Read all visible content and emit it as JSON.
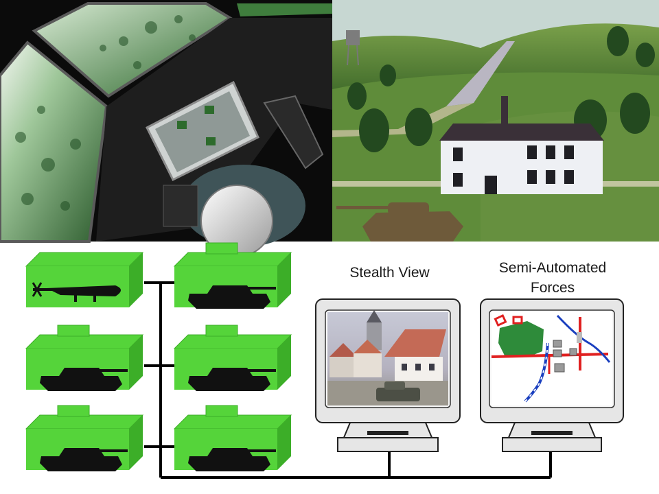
{
  "photos": {
    "cockpit": "Pilot in a flight simulator cockpit with out-the-window displays",
    "terrain": "3D rendered terrain scene with house, road, trees, water tower and tank"
  },
  "network": {
    "simulators": [
      {
        "vehicle": "helicopter"
      },
      {
        "vehicle": "tank"
      },
      {
        "vehicle": "tank"
      },
      {
        "vehicle": "tank"
      },
      {
        "vehicle": "tank"
      },
      {
        "vehicle": "tank"
      }
    ],
    "stealth_label": "Stealth View",
    "saf_label_line1": "Semi-Automated",
    "saf_label_line2": "Forces"
  },
  "colors": {
    "sim_box_front": "#55d43a",
    "sim_box_side": "#3cae28",
    "vehicle": "#111111",
    "network_line": "#000000",
    "map_forest": "#2e8b3a",
    "map_road": "#e02020",
    "map_river": "#1a3fbf"
  }
}
